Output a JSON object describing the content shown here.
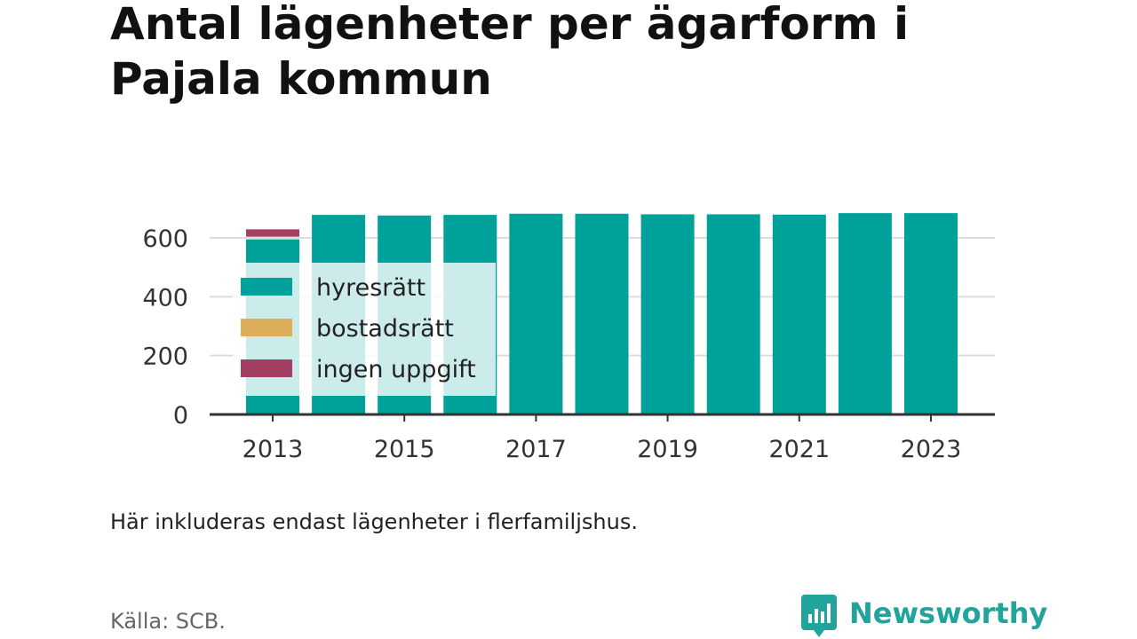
{
  "title": "Antal lägenheter per ägarform i Pajala kommun",
  "note": "Här inkluderas endast lägenheter i flerfamiljshus.",
  "source": "Källa: SCB.",
  "brand": {
    "name": "Newsworthy",
    "icon": "newsworthy-logo-icon",
    "color": "#22a39b"
  },
  "chart_data": {
    "type": "bar",
    "stacked": true,
    "categories": [
      "2013",
      "2014",
      "2015",
      "2016",
      "2017",
      "2018",
      "2019",
      "2020",
      "2021",
      "2022",
      "2023"
    ],
    "series": [
      {
        "name": "hyresrätt",
        "color": "#00a19a",
        "values": [
          595,
          678,
          676,
          678,
          682,
          682,
          680,
          680,
          679,
          684,
          684
        ]
      },
      {
        "name": "bostadsrätt",
        "color": "#dcae5a",
        "values": [
          0,
          0,
          0,
          0,
          0,
          0,
          0,
          0,
          0,
          0,
          0
        ]
      },
      {
        "name": "ingen uppgift",
        "color": "#a23f63",
        "values": [
          25,
          0,
          0,
          0,
          0,
          0,
          0,
          0,
          0,
          0,
          0
        ]
      }
    ],
    "ylim": [
      0,
      700
    ],
    "yticks": [
      0,
      200,
      400,
      600
    ],
    "xtick_labels": [
      "2013",
      "2015",
      "2017",
      "2019",
      "2021",
      "2023"
    ],
    "grid": true,
    "legend": "inside-left"
  }
}
